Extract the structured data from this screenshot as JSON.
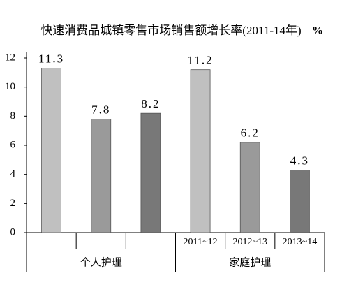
{
  "chart_data": {
    "type": "bar",
    "title": "快速消费品城镇零售市场销售额增长率(2011-14年)",
    "unit": "%",
    "categories": [
      "个人护理",
      "家庭护理"
    ],
    "series": [
      {
        "name": "2011~12",
        "color": "#c0c0c0",
        "values": [
          11.3,
          11.2
        ]
      },
      {
        "name": "2012~13",
        "color": "#9a9a9a",
        "values": [
          7.8,
          6.2
        ]
      },
      {
        "name": "2013~14",
        "color": "#787878",
        "values": [
          8.2,
          4.3
        ]
      }
    ],
    "ylim": [
      0,
      12
    ],
    "yticks": [
      0,
      2,
      4,
      6,
      8,
      10,
      12
    ],
    "grid": false
  }
}
